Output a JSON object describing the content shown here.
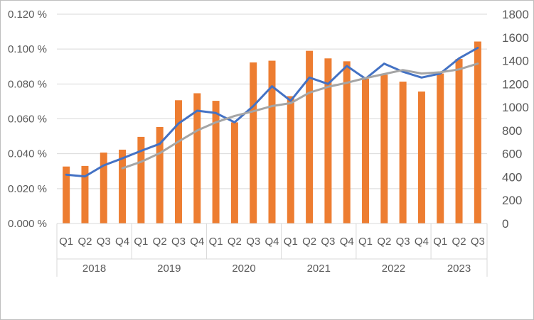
{
  "chart_data": {
    "type": "bar",
    "title": "",
    "xlabel": "",
    "ylabel": "",
    "grid": true,
    "legend": "none",
    "y_left": {
      "min": 0,
      "max": 0.12,
      "step": 0.02,
      "tick_labels": [
        "0.000 %",
        "0.020 %",
        "0.040 %",
        "0.060 %",
        "0.080 %",
        "0.100 %",
        "0.120 %"
      ]
    },
    "y_right": {
      "min": 0,
      "max": 1800,
      "step": 200,
      "tick_labels": [
        "0",
        "200",
        "400",
        "600",
        "800",
        "1000",
        "1200",
        "1400",
        "1600",
        "1800"
      ]
    },
    "categories": [
      "Q1",
      "Q2",
      "Q3",
      "Q4",
      "Q1",
      "Q2",
      "Q3",
      "Q4",
      "Q1",
      "Q2",
      "Q3",
      "Q4",
      "Q1",
      "Q2",
      "Q3",
      "Q4",
      "Q1",
      "Q2",
      "Q3",
      "Q4",
      "Q1",
      "Q2",
      "Q3"
    ],
    "groups": [
      {
        "label": "2018",
        "count": 4
      },
      {
        "label": "2019",
        "count": 4
      },
      {
        "label": "2020",
        "count": 4
      },
      {
        "label": "2021",
        "count": 4
      },
      {
        "label": "2022",
        "count": 4
      },
      {
        "label": "2023",
        "count": 3
      }
    ],
    "series": [
      {
        "type": "bar",
        "axis": "right",
        "color": "#ed7d31",
        "values": [
          490,
          495,
          610,
          635,
          745,
          830,
          1060,
          1120,
          1055,
          870,
          1385,
          1400,
          1095,
          1485,
          1420,
          1395,
          1245,
          1280,
          1220,
          1135,
          1290,
          1415,
          1565
        ]
      },
      {
        "type": "line",
        "axis": "right",
        "color": "#4472c4",
        "values": [
          420,
          405,
          500,
          560,
          625,
          685,
          860,
          970,
          950,
          870,
          1010,
          1180,
          1055,
          1255,
          1200,
          1355,
          1245,
          1375,
          1305,
          1255,
          1290,
          1420,
          1510
        ]
      },
      {
        "type": "line",
        "axis": "right",
        "color": "#a5a5a5",
        "values": [
          null,
          null,
          null,
          475,
          530,
          605,
          705,
          800,
          870,
          925,
          965,
          1010,
          1035,
          1125,
          1175,
          1210,
          1250,
          1285,
          1320,
          1290,
          1300,
          1325,
          1375
        ]
      }
    ]
  }
}
